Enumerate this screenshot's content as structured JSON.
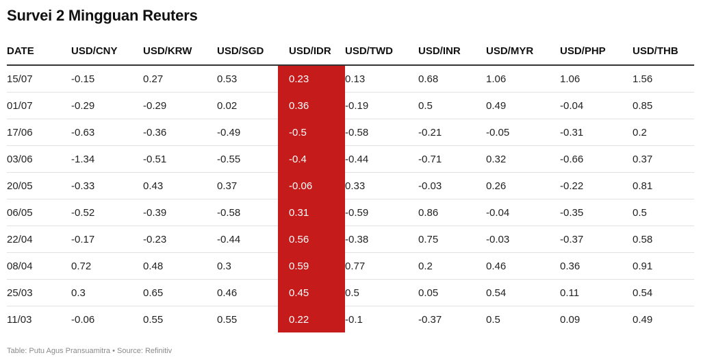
{
  "title": "Survei 2 Mingguan Reuters",
  "footer": "Table: Putu Agus Pransuamitra • Source: Refinitiv",
  "colors": {
    "highlight_fill": "#c51b1b",
    "highlight_text": "#ffffff"
  },
  "highlight_column": "USD/IDR",
  "chart_data": {
    "type": "table",
    "columns": [
      "DATE",
      "USD/CNY",
      "USD/KRW",
      "USD/SGD",
      "USD/IDR",
      "USD/TWD",
      "USD/INR",
      "USD/MYR",
      "USD/PHP",
      "USD/THB"
    ],
    "rows": [
      [
        "15/07",
        "-0.15",
        "0.27",
        "0.53",
        "0.23",
        "0.13",
        "0.68",
        "1.06",
        "1.06",
        "1.56"
      ],
      [
        "01/07",
        "-0.29",
        "-0.29",
        "0.02",
        "0.36",
        "-0.19",
        "0.5",
        "0.49",
        "-0.04",
        "0.85"
      ],
      [
        "17/06",
        "-0.63",
        "-0.36",
        "-0.49",
        "-0.5",
        "-0.58",
        "-0.21",
        "-0.05",
        "-0.31",
        "0.2"
      ],
      [
        "03/06",
        "-1.34",
        "-0.51",
        "-0.55",
        "-0.4",
        "-0.44",
        "-0.71",
        "0.32",
        "-0.66",
        "0.37"
      ],
      [
        "20/05",
        "-0.33",
        "0.43",
        "0.37",
        "-0.06",
        "0.33",
        "-0.03",
        "0.26",
        "-0.22",
        "0.81"
      ],
      [
        "06/05",
        "-0.52",
        "-0.39",
        "-0.58",
        "0.31",
        "-0.59",
        "0.86",
        "-0.04",
        "-0.35",
        "0.5"
      ],
      [
        "22/04",
        "-0.17",
        "-0.23",
        "-0.44",
        "0.56",
        "-0.38",
        "0.75",
        "-0.03",
        "-0.37",
        "0.58"
      ],
      [
        "08/04",
        "0.72",
        "0.48",
        "0.3",
        "0.59",
        "0.77",
        "0.2",
        "0.46",
        "0.36",
        "0.91"
      ],
      [
        "25/03",
        "0.3",
        "0.65",
        "0.46",
        "0.45",
        "0.5",
        "0.05",
        "0.54",
        "0.11",
        "0.54"
      ],
      [
        "11/03",
        "-0.06",
        "0.55",
        "0.55",
        "0.22",
        "-0.1",
        "-0.37",
        "0.5",
        "0.09",
        "0.49"
      ]
    ]
  }
}
